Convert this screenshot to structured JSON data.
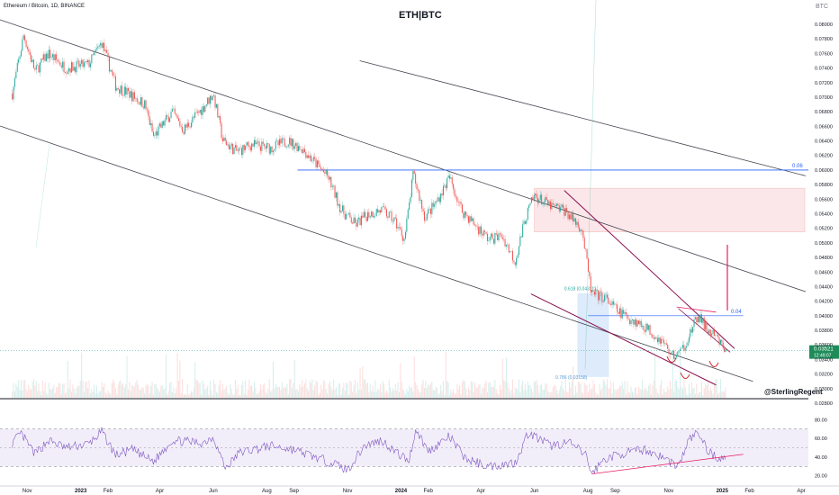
{
  "header": {
    "symbol_line": "Ethereum / Bitcoin, 1D, BINANCE",
    "title": "ETH|BTC",
    "currency": "BTC",
    "watermark": "@SterlingRegent"
  },
  "chart_data": [
    {
      "type": "candlestick",
      "title": "ETH|BTC",
      "series_name": "Ethereum / Bitcoin, 1D, BINANCE",
      "y_axis_ticks": [
        0.08,
        0.078,
        0.076,
        0.074,
        0.072,
        0.07,
        0.068,
        0.066,
        0.064,
        0.062,
        0.06,
        0.058,
        0.056,
        0.054,
        0.052,
        0.05,
        0.048,
        0.046,
        0.044,
        0.042,
        0.04,
        0.038,
        0.036,
        0.034,
        0.032,
        0.03,
        0.028
      ],
      "y_axis_tick_labels": [
        "0.08000",
        "0.07800",
        "0.07600",
        "0.07400",
        "0.07200",
        "0.07000",
        "0.06800",
        "0.06600",
        "0.06400",
        "0.06200",
        "0.06000",
        "0.05800",
        "0.05600",
        "0.05400",
        "0.05200",
        "0.05000",
        "0.04800",
        "0.04600",
        "0.04400",
        "0.04200",
        "0.04000",
        "0.03800",
        "0.03600",
        "0.03400",
        "0.03200",
        "0.03000",
        "0.02800"
      ],
      "ylim": [
        0.0275,
        0.0815
      ],
      "x_axis_labels": [
        "Nov",
        "2023",
        "Feb",
        "Apr",
        "Jun",
        "Aug",
        "Sep",
        "Nov",
        "2024",
        "Feb",
        "Apr",
        "Jun",
        "Aug",
        "Sep",
        "Nov",
        "2025",
        "Feb",
        "Apr"
      ],
      "x_axis_months": [
        "2022-11",
        "2023-01",
        "2023-02",
        "2023-04",
        "2023-06",
        "2023-08",
        "2023-09",
        "2023-11",
        "2024-01",
        "2024-02",
        "2024-04",
        "2024-06",
        "2024-08",
        "2024-09",
        "2024-11",
        "2025-01",
        "2025-02",
        "2025-04"
      ],
      "price_path": [
        [
          "2022-10-15",
          0.0705
        ],
        [
          "2022-10-28",
          0.0785
        ],
        [
          "2022-11-10",
          0.0735
        ],
        [
          "2022-11-25",
          0.076
        ],
        [
          "2022-12-15",
          0.074
        ],
        [
          "2023-01-10",
          0.0745
        ],
        [
          "2023-01-25",
          0.0775
        ],
        [
          "2023-02-10",
          0.0715
        ],
        [
          "2023-02-25",
          0.0705
        ],
        [
          "2023-03-15",
          0.069
        ],
        [
          "2023-03-25",
          0.0645
        ],
        [
          "2023-04-15",
          0.068
        ],
        [
          "2023-04-28",
          0.0655
        ],
        [
          "2023-05-20",
          0.0685
        ],
        [
          "2023-06-01",
          0.0705
        ],
        [
          "2023-06-12",
          0.064
        ],
        [
          "2023-06-28",
          0.0625
        ],
        [
          "2023-07-15",
          0.0635
        ],
        [
          "2023-08-05",
          0.063
        ],
        [
          "2023-08-25",
          0.064
        ],
        [
          "2023-09-10",
          0.063
        ],
        [
          "2023-09-25",
          0.061
        ],
        [
          "2023-10-10",
          0.059
        ],
        [
          "2023-10-25",
          0.0545
        ],
        [
          "2023-11-10",
          0.0525
        ],
        [
          "2023-11-25",
          0.054
        ],
        [
          "2023-12-10",
          0.0545
        ],
        [
          "2023-12-25",
          0.053
        ],
        [
          "2024-01-05",
          0.0505
        ],
        [
          "2024-01-15",
          0.0595
        ],
        [
          "2024-01-28",
          0.0535
        ],
        [
          "2024-02-10",
          0.0555
        ],
        [
          "2024-02-25",
          0.059
        ],
        [
          "2024-03-10",
          0.0545
        ],
        [
          "2024-03-25",
          0.0525
        ],
        [
          "2024-04-10",
          0.0505
        ],
        [
          "2024-04-25",
          0.051
        ],
        [
          "2024-05-10",
          0.0475
        ],
        [
          "2024-05-22",
          0.0535
        ],
        [
          "2024-06-01",
          0.0565
        ],
        [
          "2024-06-20",
          0.055
        ],
        [
          "2024-07-05",
          0.0545
        ],
        [
          "2024-07-25",
          0.052
        ],
        [
          "2024-08-05",
          0.043
        ],
        [
          "2024-08-20",
          0.0425
        ],
        [
          "2024-09-05",
          0.0405
        ],
        [
          "2024-09-20",
          0.0395
        ],
        [
          "2024-10-05",
          0.0385
        ],
        [
          "2024-10-25",
          0.0365
        ],
        [
          "2024-11-05",
          0.0345
        ],
        [
          "2024-11-15",
          0.035
        ],
        [
          "2024-11-25",
          0.0375
        ],
        [
          "2024-12-05",
          0.04
        ],
        [
          "2024-12-15",
          0.038
        ],
        [
          "2024-12-25",
          0.037
        ],
        [
          "2025-01-05",
          0.0352
        ]
      ],
      "current_price": 0.03521,
      "current_price_label": "0.03521",
      "countdown_label": "12:49:07",
      "annotations": {
        "level_label_upper": "0.06",
        "level_label_lower": "0.04",
        "fib_upper": "0.618 (0.04311)",
        "fib_lower": "0.786 (0.03158)"
      },
      "colors": {
        "up": "#26a69a",
        "down": "#ef5350",
        "channel": "#434651",
        "wedge": "#880e4f",
        "level": "#2962ff",
        "zone": "#f8d7da",
        "fib_box": "#cfe2f8",
        "pink": "#e91e63"
      }
    },
    {
      "type": "line",
      "series_name": "RSI",
      "y_axis_ticks": [
        80,
        60,
        40,
        20
      ],
      "y_axis_tick_labels": [
        "80.00",
        "60.00",
        "40.00",
        "20.00"
      ],
      "ylim": [
        12,
        88
      ],
      "band": [
        30,
        70
      ],
      "mid": 50,
      "rsi_path": [
        [
          "2022-10-15",
          55
        ],
        [
          "2022-10-25",
          65
        ],
        [
          "2022-11-10",
          43
        ],
        [
          "2022-11-25",
          58
        ],
        [
          "2022-12-15",
          50
        ],
        [
          "2023-01-10",
          54
        ],
        [
          "2023-01-25",
          67
        ],
        [
          "2023-02-10",
          42
        ],
        [
          "2023-03-01",
          48
        ],
        [
          "2023-03-25",
          35
        ],
        [
          "2023-04-15",
          58
        ],
        [
          "2023-05-20",
          55
        ],
        [
          "2023-06-01",
          62
        ],
        [
          "2023-06-15",
          28
        ],
        [
          "2023-07-01",
          45
        ],
        [
          "2023-08-05",
          52
        ],
        [
          "2023-09-01",
          48
        ],
        [
          "2023-09-25",
          40
        ],
        [
          "2023-10-20",
          32
        ],
        [
          "2023-11-01",
          26
        ],
        [
          "2023-11-20",
          52
        ],
        [
          "2023-12-10",
          58
        ],
        [
          "2023-12-28",
          44
        ],
        [
          "2024-01-10",
          36
        ],
        [
          "2024-01-18",
          70
        ],
        [
          "2024-02-01",
          46
        ],
        [
          "2024-02-25",
          62
        ],
        [
          "2024-03-15",
          38
        ],
        [
          "2024-04-10",
          30
        ],
        [
          "2024-05-10",
          34
        ],
        [
          "2024-05-25",
          66
        ],
        [
          "2024-06-20",
          52
        ],
        [
          "2024-07-10",
          56
        ],
        [
          "2024-07-30",
          42
        ],
        [
          "2024-08-05",
          22
        ],
        [
          "2024-08-20",
          38
        ],
        [
          "2024-09-10",
          44
        ],
        [
          "2024-10-05",
          48
        ],
        [
          "2024-10-25",
          40
        ],
        [
          "2024-11-05",
          34
        ],
        [
          "2024-11-12",
          30
        ],
        [
          "2024-11-25",
          60
        ],
        [
          "2024-12-05",
          66
        ],
        [
          "2024-12-15",
          48
        ],
        [
          "2024-12-25",
          40
        ],
        [
          "2025-01-05",
          38
        ]
      ]
    }
  ]
}
